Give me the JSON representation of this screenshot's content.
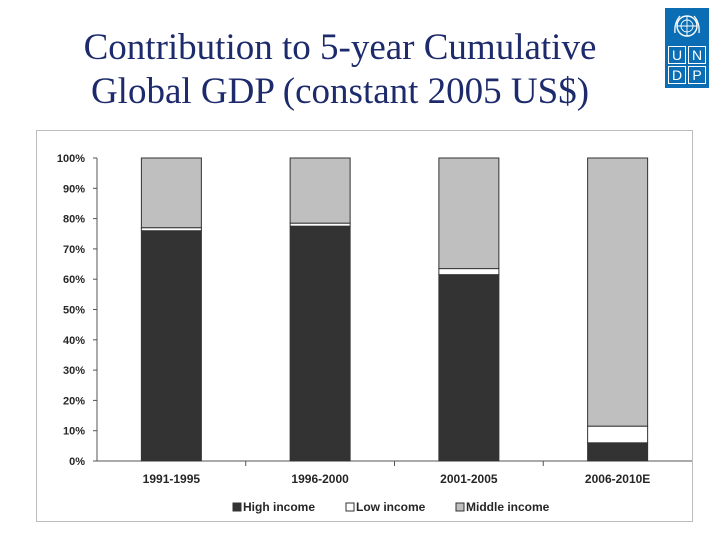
{
  "slide": {
    "title_line1": "Contribution to 5-year Cumulative",
    "title_line2": "Global GDP (constant 2005 US$)"
  },
  "logo": {
    "letters": [
      "U",
      "N",
      "D",
      "P"
    ],
    "background_color": "#0b6eb5"
  },
  "chart_data": {
    "type": "bar",
    "stacked": true,
    "categories": [
      "1991-1995",
      "1996-2000",
      "2001-2005",
      "2006-2010E"
    ],
    "series": [
      {
        "name": "High income",
        "color": "#333333",
        "values": [
          76,
          77.5,
          61.5,
          6
        ]
      },
      {
        "name": "Low income",
        "color": "#ffffff",
        "values": [
          1,
          1,
          2,
          5.5
        ]
      },
      {
        "name": "Middle income",
        "color": "#bfbfbf",
        "values": [
          23,
          21.5,
          36.5,
          88.5
        ]
      }
    ],
    "ylim": [
      0,
      100
    ],
    "y_ticks": [
      0,
      10,
      20,
      30,
      40,
      50,
      60,
      70,
      80,
      90,
      100
    ],
    "y_tick_labels": [
      "0%",
      "10%",
      "20%",
      "30%",
      "40%",
      "50%",
      "60%",
      "70%",
      "80%",
      "90%",
      "100%"
    ],
    "title": "",
    "xlabel": "",
    "ylabel": "",
    "grid": false,
    "legend_position": "bottom"
  }
}
